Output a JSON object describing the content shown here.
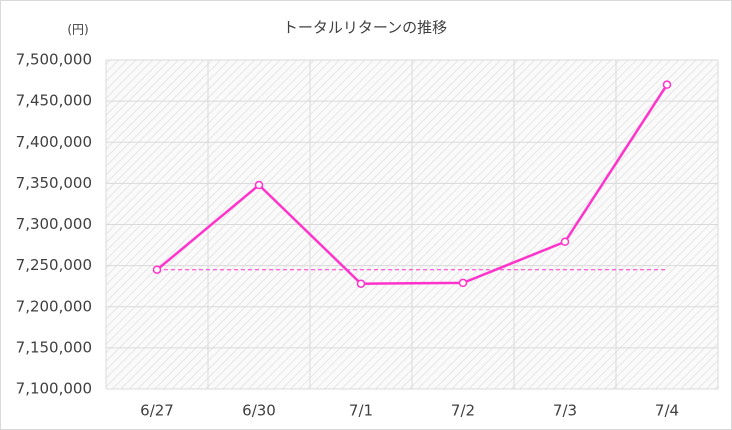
{
  "chart_data": {
    "type": "line",
    "title": "トータルリターンの推移",
    "y_unit_label": "(円)",
    "categories": [
      "6/27",
      "6/30",
      "7/1",
      "7/2",
      "7/3",
      "7/4"
    ],
    "series": [
      {
        "color": "#ff33cc",
        "values": [
          7245000,
          7348000,
          7228000,
          7229000,
          7279000,
          7470000
        ]
      }
    ],
    "reference_line": {
      "value": 7245000,
      "color": "#ff33cc",
      "dashed": true
    },
    "ylim": [
      7100000,
      7500000
    ],
    "yticks": [
      {
        "value": 7100000,
        "label": "7,100,000"
      },
      {
        "value": 7150000,
        "label": "7,150,000"
      },
      {
        "value": 7200000,
        "label": "7,200,000"
      },
      {
        "value": 7250000,
        "label": "7,250,000"
      },
      {
        "value": 7300000,
        "label": "7,300,000"
      },
      {
        "value": 7350000,
        "label": "7,350,000"
      },
      {
        "value": 7400000,
        "label": "7,400,000"
      },
      {
        "value": 7450000,
        "label": "7,450,000"
      },
      {
        "value": 7500000,
        "label": "7,500,000"
      }
    ],
    "grid": true
  }
}
